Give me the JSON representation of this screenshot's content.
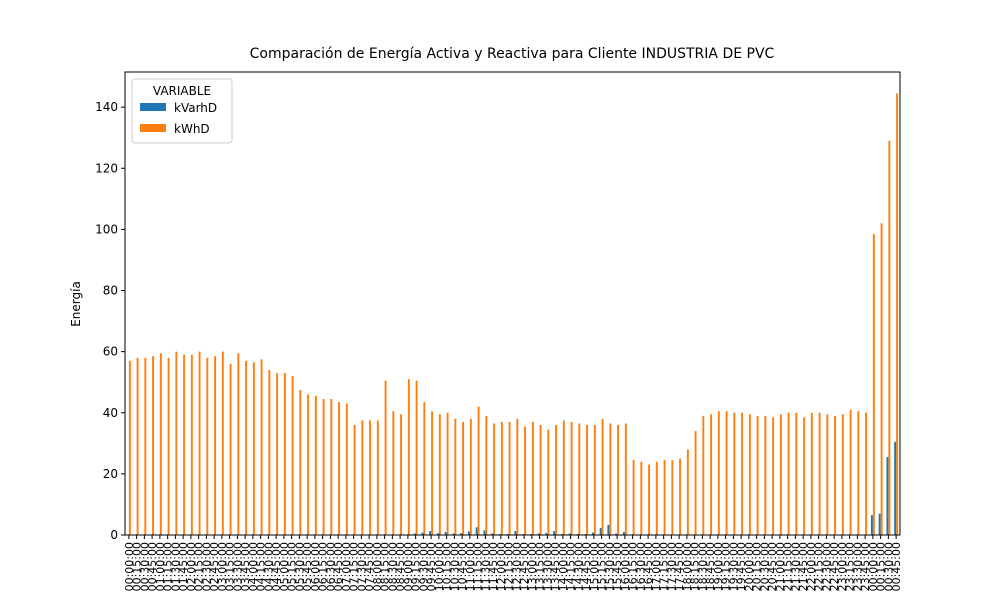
{
  "chart_data": {
    "type": "bar",
    "title": "Comparación de Energía Activa y Reactiva para Cliente INDUSTRIA DE PVC",
    "ylabel": "Energía",
    "legend_title": "VARIABLE",
    "legend": "upper left",
    "categories": [
      "00:00:00",
      "00:15:00",
      "00:30:00",
      "00:45:00",
      "01:00:00",
      "01:15:00",
      "01:30:00",
      "01:45:00",
      "02:00:00",
      "02:15:00",
      "02:30:00",
      "02:45:00",
      "03:00:00",
      "03:15:00",
      "03:30:00",
      "03:45:00",
      "04:00:00",
      "04:15:00",
      "04:30:00",
      "04:45:00",
      "05:00:00",
      "05:15:00",
      "05:30:00",
      "05:45:00",
      "06:00:00",
      "06:15:00",
      "06:30:00",
      "06:45:00",
      "07:00:00",
      "07:15:00",
      "07:30:00",
      "07:45:00",
      "08:00:00",
      "08:15:00",
      "08:30:00",
      "08:45:00",
      "09:00:00",
      "09:15:00",
      "09:30:00",
      "09:45:00",
      "10:00:00",
      "10:15:00",
      "10:30:00",
      "10:45:00",
      "11:00:00",
      "11:15:00",
      "11:30:00",
      "11:45:00",
      "12:00:00",
      "12:15:00",
      "12:30:00",
      "12:45:00",
      "13:00:00",
      "13:15:00",
      "13:30:00",
      "13:45:00",
      "14:00:00",
      "14:15:00",
      "14:30:00",
      "14:45:00",
      "15:00:00",
      "15:15:00",
      "15:30:00",
      "15:45:00",
      "16:00:00",
      "16:15:00",
      "16:30:00",
      "16:45:00",
      "17:00:00",
      "17:15:00",
      "17:30:00",
      "17:45:00",
      "18:00:00",
      "18:15:00",
      "18:30:00",
      "18:45:00",
      "19:00:00",
      "19:15:00",
      "19:30:00",
      "19:45:00",
      "20:00:00",
      "20:15:00",
      "20:30:00",
      "20:45:00",
      "21:00:00",
      "21:15:00",
      "21:30:00",
      "21:45:00",
      "22:00:00",
      "22:15:00",
      "22:30:00",
      "22:45:00",
      "23:00:00",
      "23:15:00",
      "23:30:00",
      "23:45:00",
      "00:00:00",
      "00:15:00",
      "00:30:00",
      "00:45:00"
    ],
    "series": [
      {
        "name": "kVarhD",
        "color": "#1f77b4",
        "values": [
          0,
          0,
          0,
          0,
          0,
          0,
          0,
          0,
          0,
          0,
          0,
          0,
          0,
          0,
          0,
          0,
          0,
          0,
          0,
          0,
          0,
          0,
          0,
          0,
          0,
          0,
          0,
          0,
          0,
          0,
          0,
          0,
          0,
          0,
          0,
          0,
          0,
          0.5,
          0.8,
          1.3,
          0.6,
          1,
          0.5,
          0.6,
          1.2,
          2.5,
          1.5,
          0.5,
          0.3,
          0.3,
          1.3,
          0.3,
          0.3,
          0.5,
          0.7,
          1.3,
          0.3,
          0.5,
          0.3,
          0.3,
          0.8,
          2.3,
          3.3,
          0.5,
          1,
          0,
          0,
          0,
          0,
          0,
          0,
          0,
          0,
          0,
          0,
          0,
          0,
          0,
          0,
          0,
          0,
          0,
          0,
          0,
          0,
          0,
          0,
          0,
          0,
          0,
          0,
          0,
          0,
          0,
          0,
          0,
          6.5,
          7,
          25.5,
          30.5
        ]
      },
      {
        "name": "kWhD",
        "color": "#ff7f0e",
        "values": [
          57,
          58,
          58,
          58.5,
          59.5,
          58,
          60,
          59,
          59,
          60,
          58,
          58.5,
          60,
          56,
          59.5,
          57,
          56.5,
          57.5,
          54,
          53,
          53,
          52,
          47.5,
          46,
          45.5,
          44.5,
          44.5,
          43.5,
          43,
          36,
          37.5,
          37.5,
          37.5,
          50.5,
          40.5,
          39.5,
          51,
          50.5,
          43.5,
          40.5,
          39.5,
          40,
          38,
          37,
          38,
          42,
          39,
          36.5,
          37,
          37,
          38,
          35.5,
          37,
          36,
          34.5,
          36,
          37.5,
          37,
          36.5,
          36,
          36,
          38,
          36.5,
          36,
          36.5,
          24.5,
          24,
          23,
          24,
          24.5,
          24.5,
          25,
          28,
          34,
          39,
          39.5,
          40.5,
          40.5,
          40,
          40,
          39.5,
          39,
          39,
          38.5,
          39.5,
          40,
          40,
          38.5,
          40,
          40,
          39.5,
          39,
          39.5,
          41,
          40.5,
          40,
          98.5,
          102,
          129,
          144.5
        ]
      }
    ],
    "ylim": [
      0,
      151.5
    ],
    "yticks": [
      0,
      20,
      40,
      60,
      80,
      100,
      120,
      140
    ]
  }
}
